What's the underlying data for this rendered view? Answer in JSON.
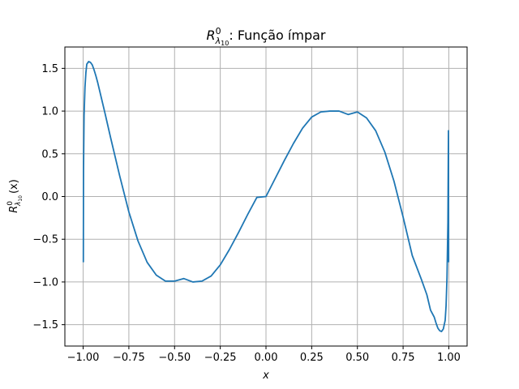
{
  "chart_data": {
    "type": "line",
    "title_math": {
      "base": "R",
      "sup": "0",
      "sub": "λ",
      "subsub": "10"
    },
    "title_suffix": ": Função ímpar",
    "xlabel": "x",
    "ylabel_math": {
      "base": "R",
      "sup": "0",
      "sub": "λ",
      "subsub": "10",
      "arg": "(x)"
    },
    "xlim": [
      -1.1,
      1.1
    ],
    "ylim": [
      -1.75,
      1.75
    ],
    "xticks": [
      -1.0,
      -0.75,
      -0.5,
      -0.25,
      0.0,
      0.25,
      0.5,
      0.75,
      1.0
    ],
    "xtick_labels": [
      "−1.00",
      "−0.75",
      "−0.50",
      "−0.25",
      "0.00",
      "0.25",
      "0.50",
      "0.75",
      "1.00"
    ],
    "yticks": [
      -1.5,
      -1.0,
      -0.5,
      0.0,
      0.5,
      1.0,
      1.5
    ],
    "ytick_labels": [
      "−1.5",
      "−1.0",
      "−0.5",
      "0.0",
      "0.5",
      "1.0",
      "1.5"
    ],
    "grid": true,
    "line_color": "#1f77b4",
    "grid_color": "#b0b0b0",
    "series": [
      {
        "x": [
          -0.999,
          -0.998,
          -0.995,
          -0.99,
          -0.985,
          -0.98,
          -0.97,
          -0.96,
          -0.95,
          -0.94,
          -0.93,
          -0.92,
          -0.9,
          -0.88,
          -0.85,
          -0.8,
          -0.75,
          -0.7,
          -0.65,
          -0.6,
          -0.55,
          -0.5,
          -0.45,
          -0.4,
          -0.35,
          -0.3,
          -0.25,
          -0.2,
          -0.15,
          -0.1,
          -0.05,
          0.0,
          0.05,
          0.1,
          0.15,
          0.2,
          0.25,
          0.3,
          0.35,
          0.4,
          0.45,
          0.5,
          0.55,
          0.6,
          0.65,
          0.7,
          0.75,
          0.8,
          0.85,
          0.88,
          0.9,
          0.92,
          0.93,
          0.94,
          0.95,
          0.96,
          0.97,
          0.98,
          0.985,
          0.99,
          0.995,
          0.998,
          0.999
        ],
        "y": [
          -0.77,
          0.3,
          0.95,
          1.28,
          1.45,
          1.55,
          1.58,
          1.57,
          1.54,
          1.48,
          1.41,
          1.33,
          1.15,
          0.97,
          0.69,
          0.24,
          -0.18,
          -0.52,
          -0.77,
          -0.92,
          -0.99,
          -0.99,
          -0.96,
          -1.0,
          -0.99,
          -0.93,
          -0.8,
          -0.62,
          -0.42,
          -0.21,
          -0.01,
          0.0,
          0.21,
          0.42,
          0.62,
          0.8,
          0.93,
          0.99,
          1.0,
          1.0,
          0.96,
          0.99,
          0.92,
          0.77,
          0.52,
          0.18,
          -0.24,
          -0.69,
          -0.97,
          -1.15,
          -1.33,
          -1.41,
          -1.48,
          -1.54,
          -1.57,
          -1.58,
          -1.55,
          -1.45,
          -1.28,
          -0.95,
          -0.3,
          0.77,
          -0.77
        ]
      }
    ]
  }
}
